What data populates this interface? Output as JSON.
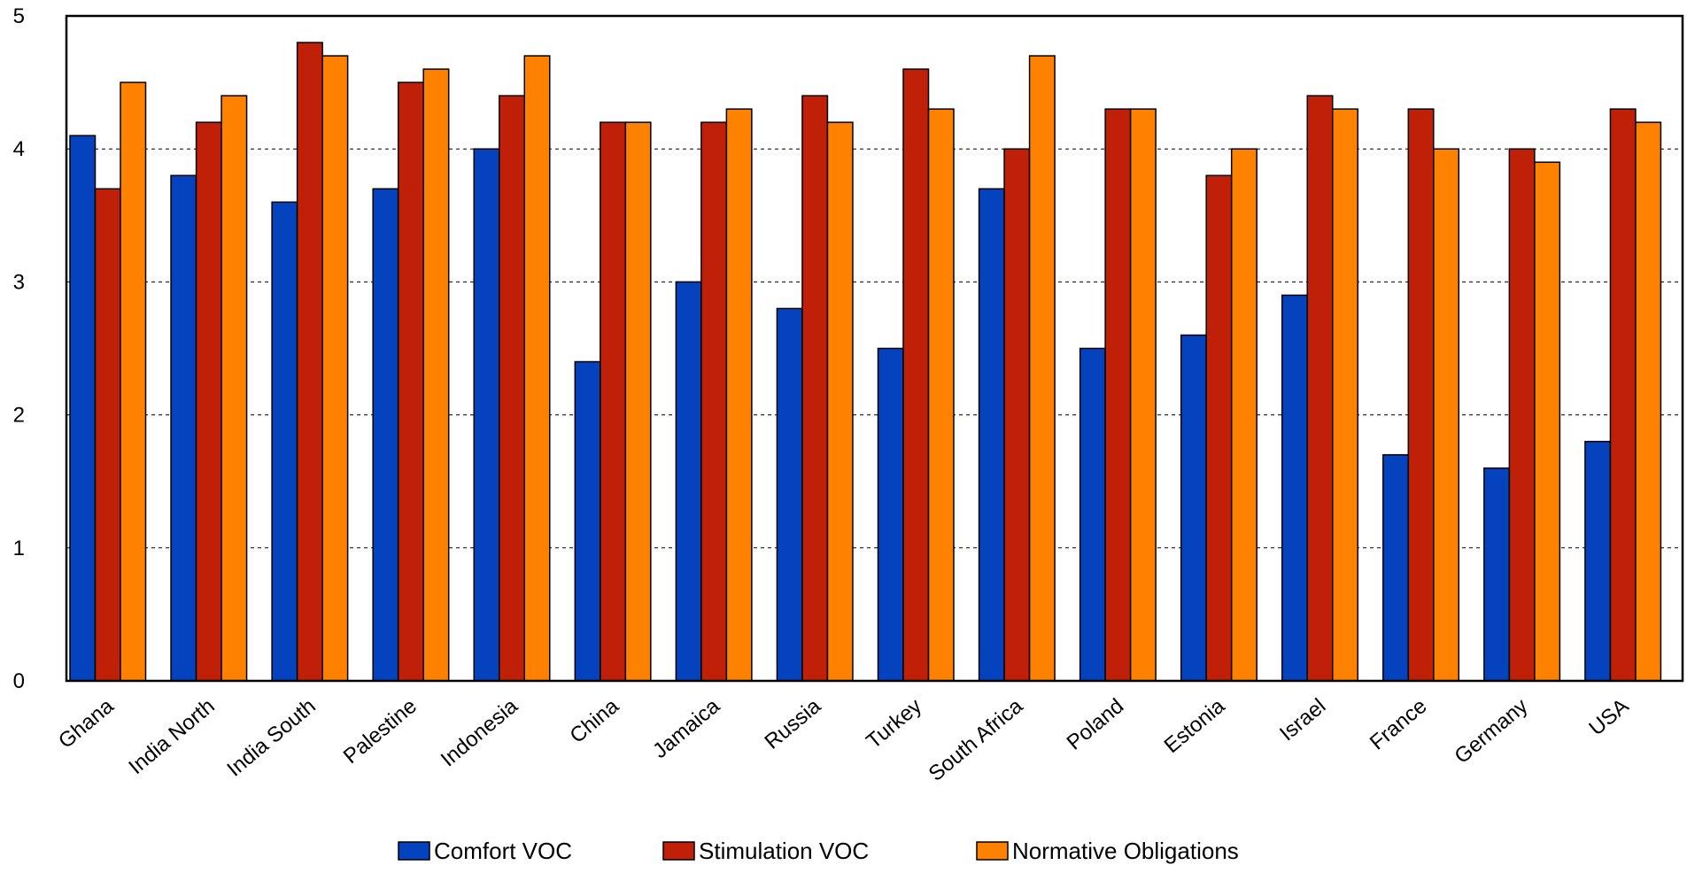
{
  "chart_data": {
    "type": "bar",
    "categories": [
      "Ghana",
      "India North",
      "India South",
      "Palestine",
      "Indonesia",
      "China",
      "Jamaica",
      "Russia",
      "Turkey",
      "South Africa",
      "Poland",
      "Estonia",
      "Israel",
      "France",
      "Germany",
      "USA"
    ],
    "series": [
      {
        "name": "Comfort VOC",
        "color": "#0542bd",
        "values": [
          4.1,
          3.8,
          3.6,
          3.7,
          4.0,
          2.4,
          3.0,
          2.8,
          2.5,
          3.7,
          2.5,
          2.6,
          2.9,
          1.7,
          1.6,
          1.8
        ]
      },
      {
        "name": "Stimulation VOC",
        "color": "#bf2007",
        "values": [
          3.7,
          4.2,
          4.8,
          4.5,
          4.4,
          4.2,
          4.2,
          4.4,
          4.6,
          4.0,
          4.3,
          3.8,
          4.4,
          4.3,
          4.0,
          4.3
        ]
      },
      {
        "name": "Normative Obligations",
        "color": "#fe8100",
        "values": [
          4.5,
          4.4,
          4.7,
          4.6,
          4.7,
          4.2,
          4.3,
          4.2,
          4.3,
          4.7,
          4.3,
          4.0,
          4.3,
          4.0,
          3.9,
          4.2
        ]
      }
    ],
    "ylim": [
      0,
      5
    ],
    "yticks": [
      "0",
      "1",
      "2",
      "3",
      "4",
      "5"
    ],
    "grid": true,
    "legend_position": "bottom"
  }
}
